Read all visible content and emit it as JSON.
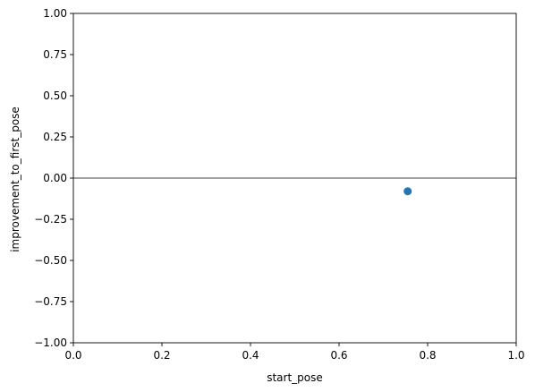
{
  "chart_data": {
    "type": "scatter",
    "title": "",
    "xlabel": "start_pose",
    "ylabel": "improvement_to_first_pose",
    "xlim": [
      0.0,
      1.0
    ],
    "ylim": [
      -1.0,
      1.0
    ],
    "x_ticks": [
      "0.0",
      "0.2",
      "0.4",
      "0.6",
      "0.8",
      "1.0"
    ],
    "x_tick_values": [
      0.0,
      0.2,
      0.4,
      0.6,
      0.8,
      1.0
    ],
    "y_ticks": [
      "1.00",
      "0.75",
      "0.50",
      "0.25",
      "0.00",
      "−0.25",
      "−0.50",
      "−0.75",
      "−1.00"
    ],
    "y_tick_values": [
      1.0,
      0.75,
      0.5,
      0.25,
      0.0,
      -0.25,
      -0.5,
      -0.75,
      -1.0
    ],
    "grid": false,
    "reference_line": {
      "y": 0.0,
      "color": "#808080"
    },
    "series": [
      {
        "x": [
          0.755
        ],
        "y": [
          -0.08
        ],
        "color": "#1f77b4"
      }
    ]
  }
}
